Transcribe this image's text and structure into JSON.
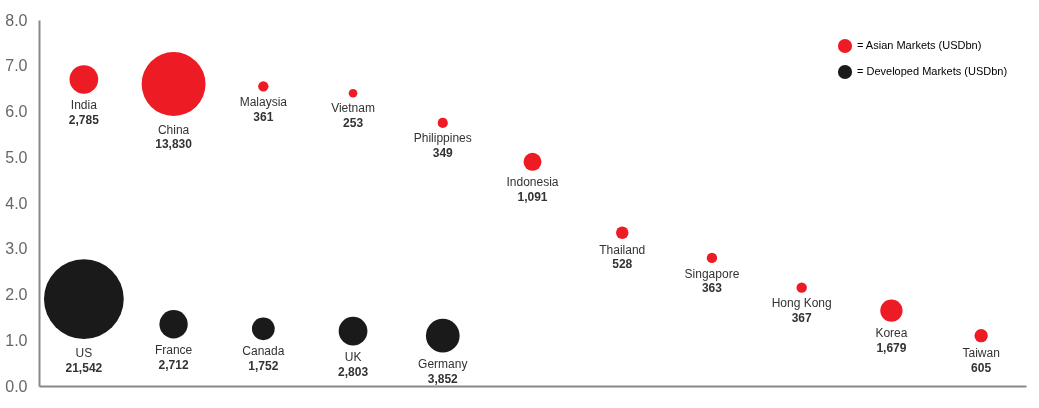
{
  "chart_data": {
    "type": "bubble",
    "categories": [
      null,
      null,
      null,
      null,
      null,
      null,
      null,
      null,
      null,
      null,
      null
    ],
    "ylim": [
      0,
      8
    ],
    "yticks": [
      {
        "value": 0,
        "label": "0.0"
      },
      {
        "value": 1,
        "label": "1.0"
      },
      {
        "value": 2,
        "label": "2.0"
      },
      {
        "value": 3,
        "label": "3.0"
      },
      {
        "value": 4,
        "label": "4.0"
      },
      {
        "value": 5,
        "label": "5.0"
      },
      {
        "value": 6,
        "label": "6.0"
      },
      {
        "value": 7,
        "label": "7.0"
      },
      {
        "value": 8,
        "label": "8.0"
      }
    ],
    "grid": false,
    "legend": "top right",
    "series": [
      {
        "name": "= Asian Markets (USDbn)",
        "color": "#ed1c24",
        "values": [
          6.7,
          6.6,
          6.55,
          6.4,
          5.75,
          4.9,
          3.35,
          2.8,
          2.15,
          1.65,
          1.1
        ],
        "sizes": [
          0.129,
          0.642,
          0.0168,
          0.0117,
          0.0162,
          0.0506,
          0.0245,
          0.0169,
          0.017,
          0.0779,
          0.0281
        ],
        "value_labels": [
          "India\n2,785",
          "China\n13,830",
          "Malaysia\n361",
          "Vietnam\n253",
          "Philippines\n349",
          "Indonesia\n1,091",
          "Thailand\n528",
          "Singapore\n363",
          "Hong Kong\n367",
          "Korea\n1,679",
          "Taiwan\n605"
        ]
      },
      {
        "name": "= Developed Markets (USDbn)",
        "color": "#1a1a1a",
        "values": [
          1.9,
          1.35,
          1.25,
          1.2,
          1.1,
          null,
          null,
          null,
          null,
          null,
          null
        ],
        "sizes": [
          1,
          0.1259,
          0.0813,
          0.1301,
          0.1788,
          null,
          null,
          null,
          null,
          null,
          null
        ],
        "value_labels": [
          "US\n21,542",
          "France\n2,712",
          "Canada\n1,752",
          "UK\n2,803",
          "Germany\n3,852",
          null,
          null,
          null,
          null,
          null,
          null
        ]
      }
    ]
  }
}
